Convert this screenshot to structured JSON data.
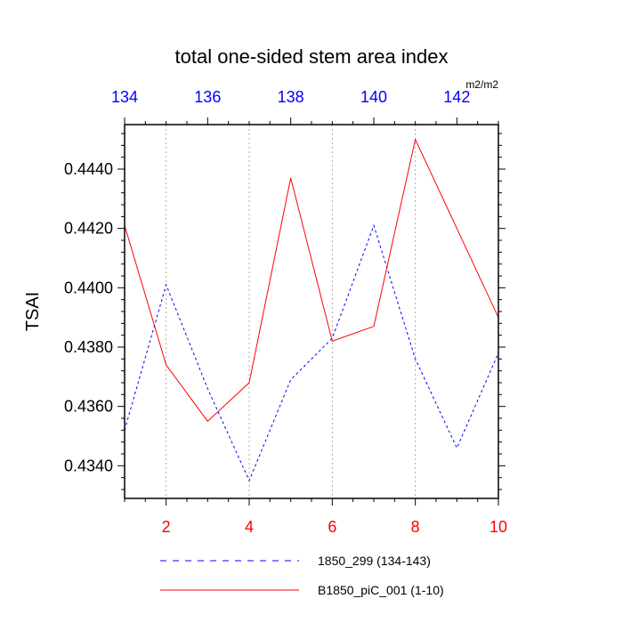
{
  "chart_data": {
    "type": "line",
    "title": "total one-sided stem area index",
    "ylabel": "TSAI",
    "units_label": "m2/m2",
    "ylim": [
      0.4329,
      0.4455
    ],
    "y_ticks": [
      0.434,
      0.436,
      0.438,
      0.44,
      0.442,
      0.444
    ],
    "y_tick_labels": [
      "0.4340",
      "0.4360",
      "0.4380",
      "0.4400",
      "0.4420",
      "0.4440"
    ],
    "x_bottom": {
      "range": [
        1,
        10
      ],
      "ticks": [
        2,
        4,
        6,
        8,
        10
      ],
      "tick_labels": [
        "2",
        "4",
        "6",
        "8",
        "10"
      ],
      "color": "#ff0000"
    },
    "x_top": {
      "range": [
        134,
        143
      ],
      "ticks": [
        134,
        136,
        138,
        140,
        142
      ],
      "tick_labels": [
        "134",
        "136",
        "138",
        "140",
        "142"
      ],
      "color": "#0000ff"
    },
    "grid": "vertical dotted at bottom-axis ticks",
    "legend_position": "bottom",
    "series": [
      {
        "name": "1850_299 (134-143)",
        "axis": "top",
        "color": "#0000ff",
        "style": "dashed",
        "x": [
          134,
          135,
          136,
          137,
          138,
          139,
          140,
          141,
          142,
          143
        ],
        "y": [
          0.4352,
          0.4401,
          0.4366,
          0.4335,
          0.4369,
          0.4383,
          0.4421,
          0.4376,
          0.4346,
          0.4378
        ]
      },
      {
        "name": "B1850_piC_001 (1-10)",
        "axis": "bottom",
        "color": "#ff0000",
        "style": "solid",
        "x": [
          1,
          2,
          3,
          4,
          5,
          6,
          7,
          8,
          9,
          10
        ],
        "y": [
          0.4421,
          0.4374,
          0.4355,
          0.4368,
          0.4437,
          0.4382,
          0.4387,
          0.445,
          0.442,
          0.439
        ]
      }
    ]
  }
}
